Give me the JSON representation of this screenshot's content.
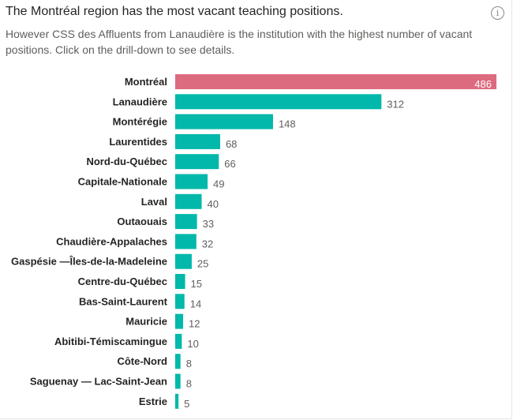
{
  "header": {
    "title": "The Montréal region has the most vacant teaching positions.",
    "subtitle": "However CSS des Affluents from Lanaudière is the institution with the highest number of vacant positions. Click on the drill-down to see details.",
    "info_icon": "info-icon"
  },
  "colors": {
    "highlight": "#dd6b7f",
    "default": "#01b8aa",
    "label_text": "#252423",
    "value_text": "#605e5c"
  },
  "chart_data": {
    "type": "bar",
    "orientation": "horizontal",
    "title": "The Montréal region has the most vacant teaching positions.",
    "categories": [
      "Montréal",
      "Lanaudière",
      "Montérégie",
      "Laurentides",
      "Nord-du-Québec",
      "Capitale-Nationale",
      "Laval",
      "Outaouais",
      "Chaudière-Appalaches",
      "Gaspésie —Îles-de-la-Madeleine",
      "Centre-du-Québec",
      "Bas-Saint-Laurent",
      "Mauricie",
      "Abitibi-Témiscamingue",
      "Côte-Nord",
      "Saguenay — Lac-Saint-Jean",
      "Estrie"
    ],
    "values": [
      486,
      312,
      148,
      68,
      66,
      49,
      40,
      33,
      32,
      25,
      15,
      14,
      12,
      10,
      8,
      8,
      5
    ],
    "highlighted_category": "Montréal",
    "data_labels": true,
    "xlim": [
      0,
      486
    ],
    "grid": false,
    "legend": "none"
  }
}
